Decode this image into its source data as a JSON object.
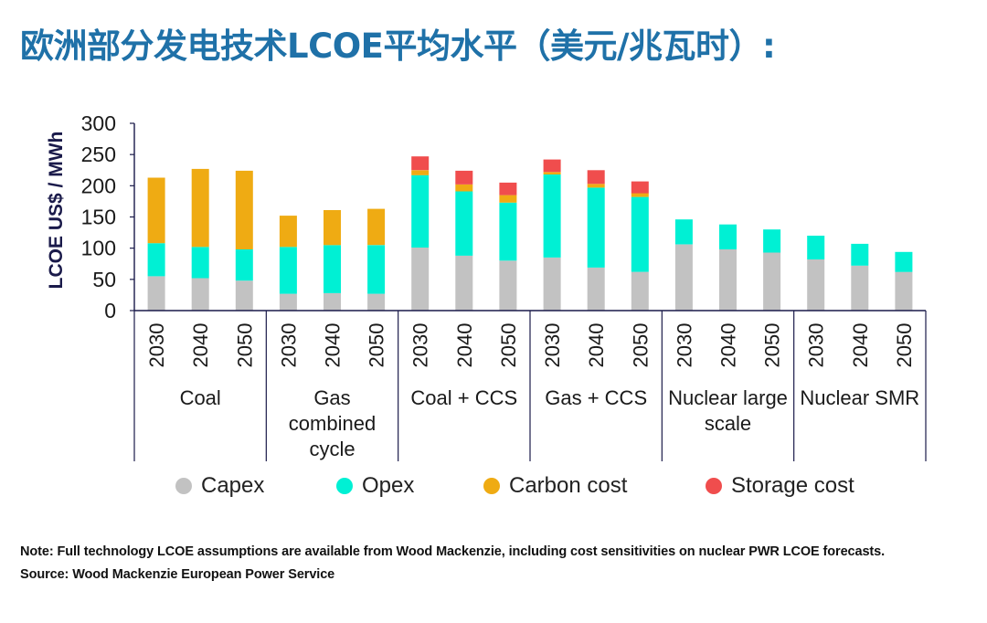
{
  "title": "欧洲部分发电技术LCOE平均水平（美元/兆瓦时）:",
  "note": "Note: Full technology LCOE assumptions are available from Wood Mackenzie, including cost sensitivities on nuclear PWR LCOE forecasts.",
  "source": "Source: Wood Mackenzie European Power Service",
  "chart_data": {
    "type": "bar",
    "stacked": true,
    "ylabel": "LCOE US$ / MWh",
    "ylim": [
      0,
      300
    ],
    "yticks": [
      0,
      50,
      100,
      150,
      200,
      250,
      300
    ],
    "groups": [
      {
        "label": [
          "Coal"
        ],
        "years": [
          "2030",
          "2040",
          "2050"
        ]
      },
      {
        "label": [
          "Gas",
          "combined",
          "cycle"
        ],
        "years": [
          "2030",
          "2040",
          "2050"
        ]
      },
      {
        "label": [
          "Coal + CCS"
        ],
        "years": [
          "2030",
          "2040",
          "2050"
        ]
      },
      {
        "label": [
          "Gas + CCS"
        ],
        "years": [
          "2030",
          "2040",
          "2050"
        ]
      },
      {
        "label": [
          "Nuclear large",
          "scale"
        ],
        "years": [
          "2030",
          "2040",
          "2050"
        ]
      },
      {
        "label": [
          "Nuclear SMR"
        ],
        "years": [
          "2030",
          "2040",
          "2050"
        ]
      }
    ],
    "series": [
      {
        "name": "Capex",
        "color": "#c2c2c2",
        "values": [
          55,
          52,
          48,
          27,
          28,
          27,
          101,
          88,
          80,
          85,
          69,
          62,
          106,
          98,
          93,
          82,
          72,
          62
        ]
      },
      {
        "name": "Opex",
        "color": "#00f0d4",
        "values": [
          53,
          50,
          50,
          75,
          77,
          78,
          116,
          103,
          93,
          133,
          128,
          120,
          40,
          40,
          37,
          38,
          35,
          32
        ]
      },
      {
        "name": "Carbon cost",
        "color": "#efab13",
        "values": [
          105,
          125,
          126,
          50,
          56,
          58,
          8,
          11,
          12,
          4,
          6,
          6,
          0,
          0,
          0,
          0,
          0,
          0
        ]
      },
      {
        "name": "Storage cost",
        "color": "#f04d4d",
        "values": [
          0,
          0,
          0,
          0,
          0,
          0,
          22,
          22,
          20,
          20,
          22,
          19,
          0,
          0,
          0,
          0,
          0,
          0
        ]
      }
    ],
    "legend_position": "bottom",
    "grid": false
  }
}
